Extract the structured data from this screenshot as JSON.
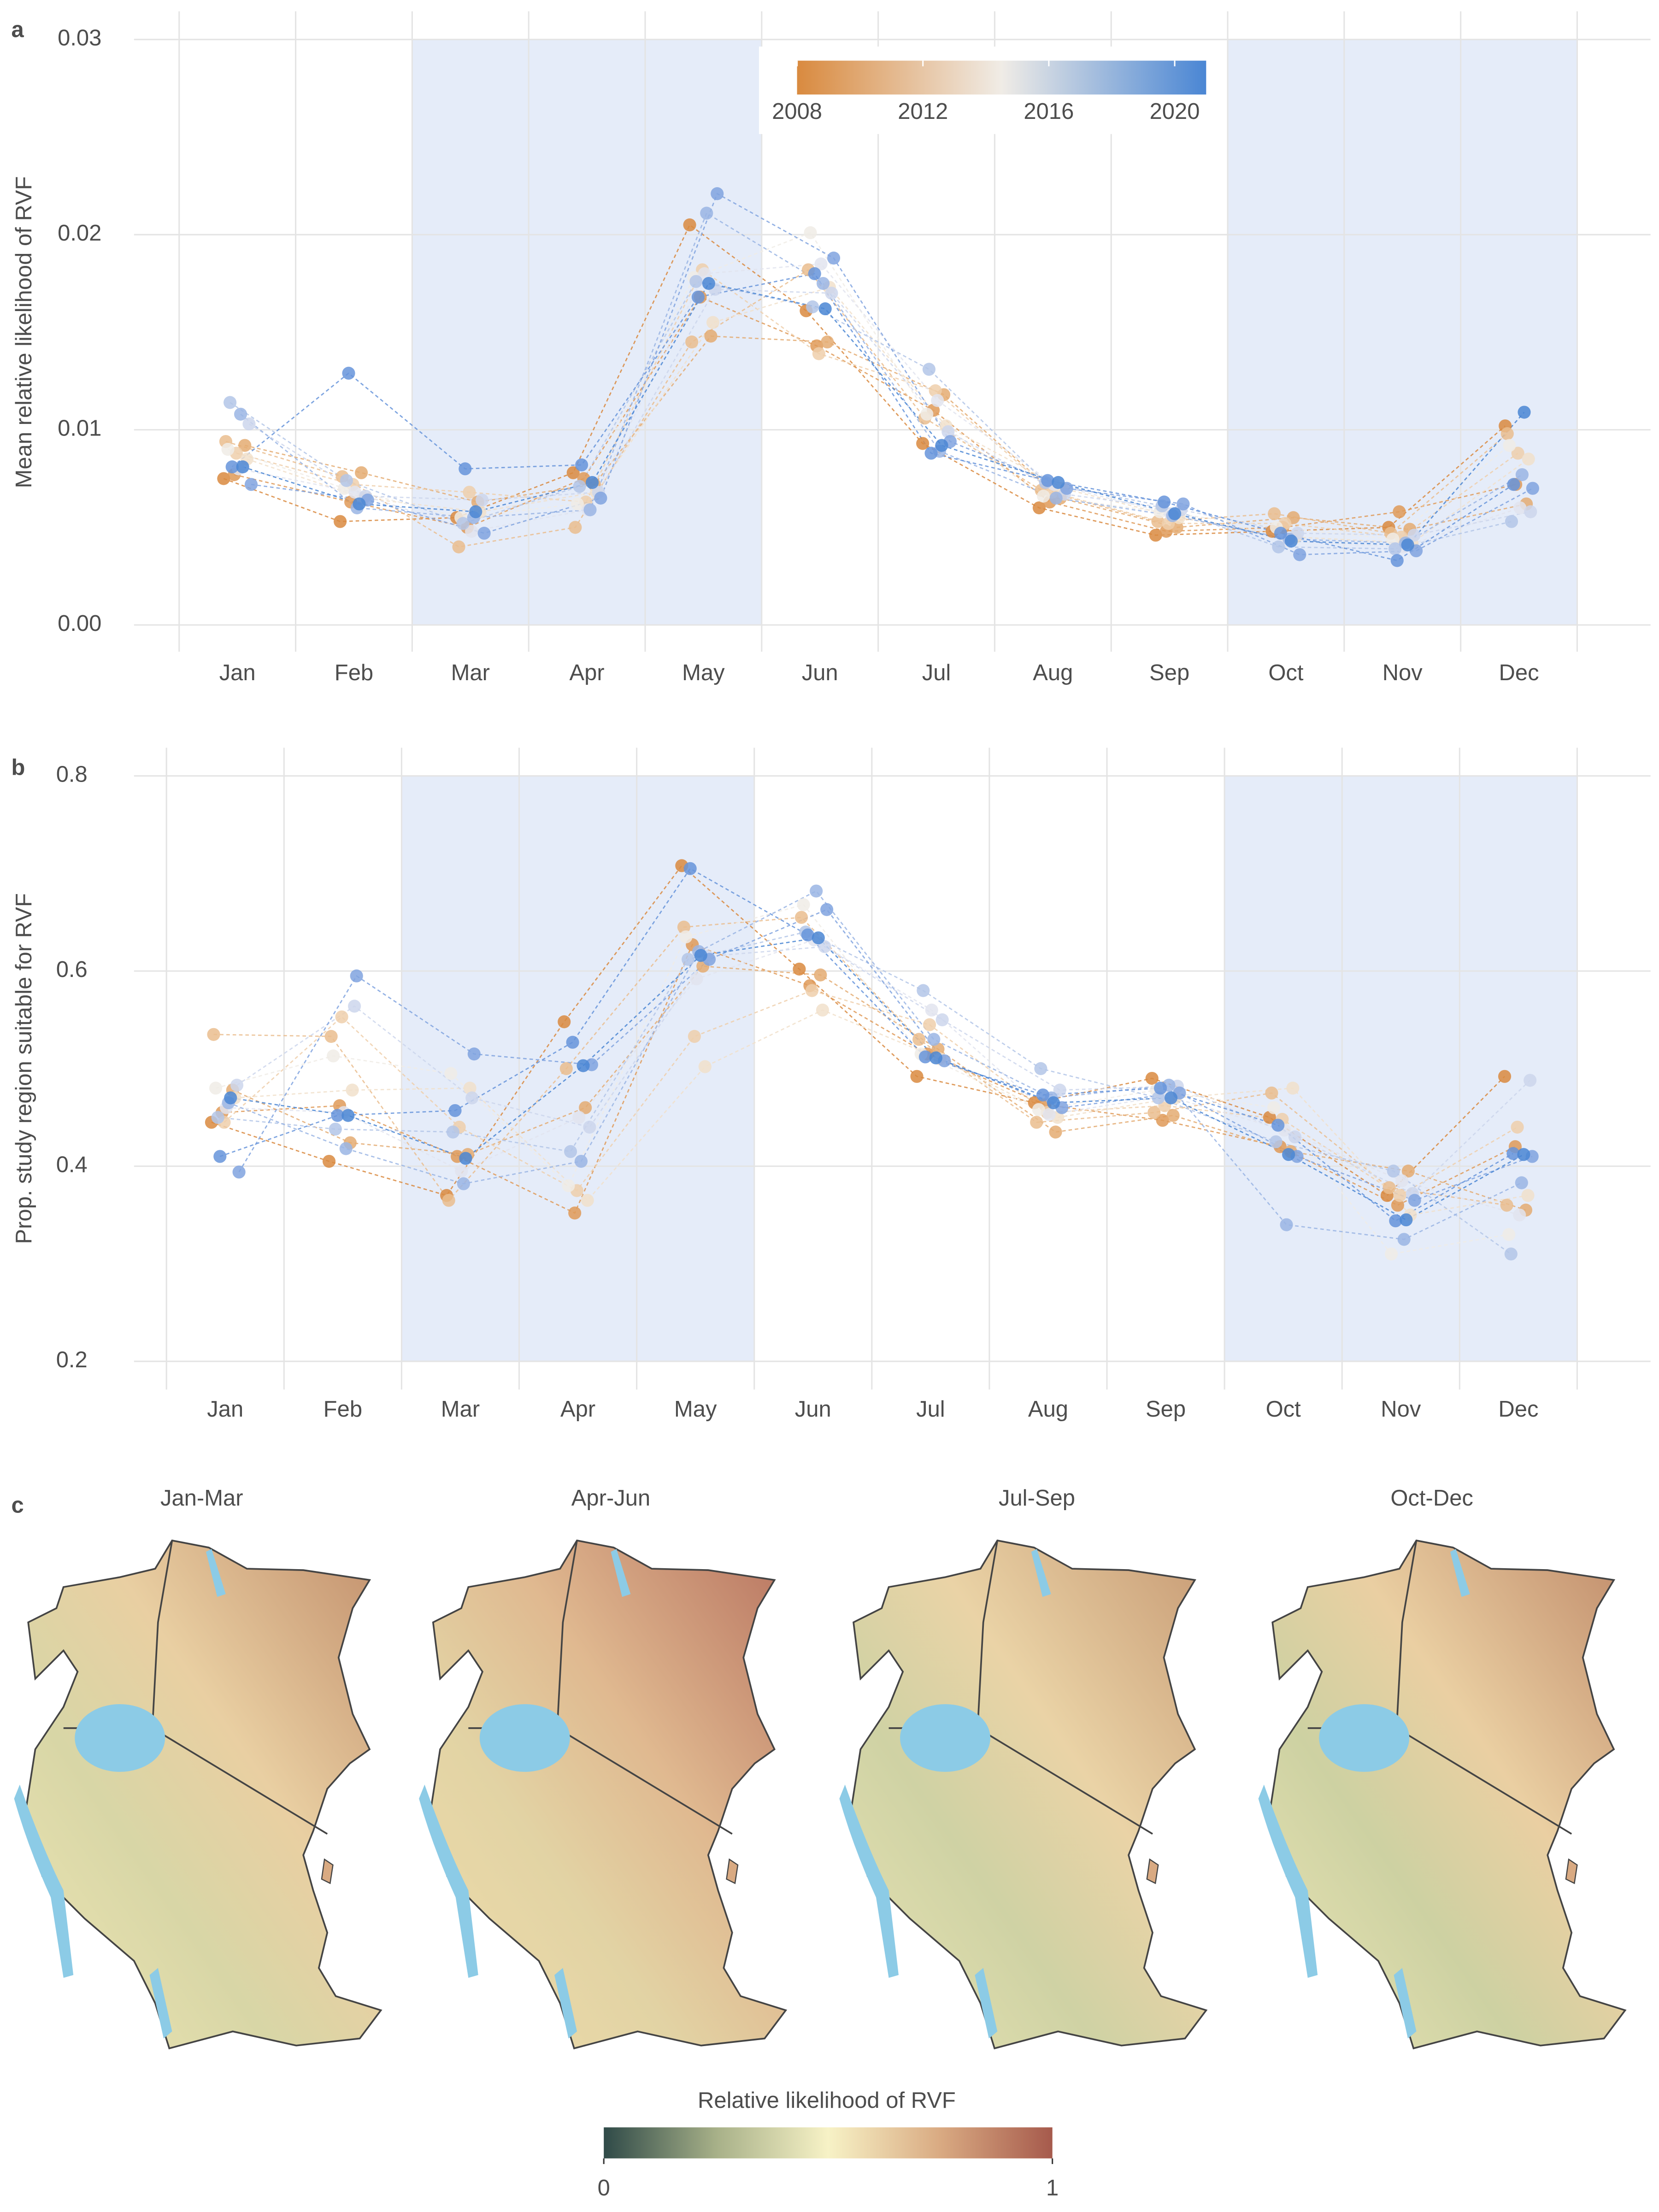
{
  "chart_data": [
    {
      "type": "line",
      "label": "a",
      "ylabel": "Mean relative likelihood of RVF",
      "categories": [
        "Jan",
        "Feb",
        "Mar",
        "Apr",
        "May",
        "Jun",
        "Jul",
        "Aug",
        "Sep",
        "Oct",
        "Nov",
        "Dec"
      ],
      "ylim": [
        0,
        0.03
      ],
      "yticks": [
        {
          "value": 0,
          "label": "0.00"
        },
        {
          "value": 0.01,
          "label": "0.01"
        },
        {
          "value": 0.02,
          "label": "0.02"
        },
        {
          "value": 0.03,
          "label": "0.03"
        }
      ],
      "grid": true,
      "shaded": [
        [
          "Mar",
          "May"
        ],
        [
          "Oct",
          "Dec"
        ]
      ],
      "colorbar": {
        "lim": [
          2008,
          2021
        ],
        "ticks": [
          2008,
          2012,
          2016,
          2020
        ],
        "colors": [
          "#d98a3f",
          "#f0ece6",
          "#4a86d4"
        ]
      },
      "series": [
        {
          "color": "#d98a3f",
          "values": [
            0.0075,
            0.0053,
            0.0055,
            0.0078,
            0.0205,
            0.0161,
            0.0093,
            0.006,
            0.0046,
            0.0048,
            0.005,
            0.0102
          ]
        },
        {
          "color": "#df9a58",
          "values": [
            0.0077,
            0.0063,
            0.005,
            0.0075,
            0.0168,
            0.0143,
            0.011,
            0.0063,
            0.0048,
            0.005,
            0.0058,
            0.0072
          ]
        },
        {
          "color": "#e4ab72",
          "values": [
            0.0092,
            0.0078,
            0.0063,
            0.0072,
            0.0148,
            0.0145,
            0.0118,
            0.0065,
            0.005,
            0.0055,
            0.0049,
            0.0062
          ]
        },
        {
          "color": "#eabd8e",
          "values": [
            0.0094,
            0.0076,
            0.004,
            0.005,
            0.0145,
            0.0182,
            0.0106,
            0.0069,
            0.0053,
            0.0057,
            0.0047,
            0.0098
          ]
        },
        {
          "color": "#eecfac",
          "values": [
            0.0088,
            0.0072,
            0.0068,
            0.0063,
            0.0182,
            0.0139,
            0.012,
            0.0068,
            0.0052,
            0.0052,
            0.0045,
            0.0088
          ]
        },
        {
          "color": "#f1e0cb",
          "values": [
            0.0085,
            0.0065,
            0.0058,
            0.0068,
            0.0155,
            0.0173,
            0.0102,
            0.007,
            0.0055,
            0.0045,
            0.0042,
            0.0085
          ]
        },
        {
          "color": "#f0ece6",
          "values": [
            0.009,
            0.007,
            0.0055,
            0.0062,
            0.0178,
            0.0201,
            0.0108,
            0.0066,
            0.0058,
            0.005,
            0.0044,
            0.0092
          ]
        },
        {
          "color": "#e2e4ee",
          "values": [
            0.008,
            0.0068,
            0.0048,
            0.0059,
            0.018,
            0.0185,
            0.0115,
            0.0072,
            0.0057,
            0.0043,
            0.004,
            0.006
          ]
        },
        {
          "color": "#ccd6ec",
          "values": [
            0.0103,
            0.0066,
            0.0064,
            0.0068,
            0.0172,
            0.017,
            0.0099,
            0.0067,
            0.0059,
            0.0047,
            0.0046,
            0.0058
          ]
        },
        {
          "color": "#b3c6e8",
          "values": [
            0.0114,
            0.0074,
            0.0052,
            0.0071,
            0.0176,
            0.0163,
            0.0131,
            0.0073,
            0.0061,
            0.004,
            0.0039,
            0.0053
          ]
        },
        {
          "color": "#9ab5e4",
          "values": [
            0.0108,
            0.006,
            0.0055,
            0.0059,
            0.0211,
            0.0175,
            0.0089,
            0.0065,
            0.0056,
            0.0044,
            0.0042,
            0.0077
          ]
        },
        {
          "color": "#80a3df",
          "values": [
            0.0072,
            0.0064,
            0.0047,
            0.0065,
            0.0221,
            0.0188,
            0.0094,
            0.007,
            0.0062,
            0.0036,
            0.0038,
            0.007
          ]
        },
        {
          "color": "#6694da",
          "values": [
            0.0081,
            0.0129,
            0.008,
            0.0082,
            0.0168,
            0.018,
            0.0088,
            0.0074,
            0.0063,
            0.0047,
            0.0033,
            0.0072
          ]
        },
        {
          "color": "#4a86d4",
          "values": [
            0.0081,
            0.0062,
            0.0058,
            0.0073,
            0.0175,
            0.0162,
            0.0092,
            0.0073,
            0.0057,
            0.0043,
            0.0041,
            0.0109
          ]
        }
      ]
    },
    {
      "type": "line",
      "label": "b",
      "ylabel": "Prop. study region suitable for RVF",
      "categories": [
        "Jan",
        "Feb",
        "Mar",
        "Apr",
        "May",
        "Jun",
        "Jul",
        "Aug",
        "Sep",
        "Oct",
        "Nov",
        "Dec"
      ],
      "ylim": [
        0.2,
        0.8
      ],
      "yticks": [
        0.2,
        0.4,
        0.6,
        0.8
      ],
      "grid": true,
      "shaded": [
        [
          "Mar",
          "May"
        ],
        [
          "Oct",
          "Dec"
        ]
      ],
      "series": [
        {
          "color": "#d98a3f",
          "values": [
            0.445,
            0.405,
            0.37,
            0.548,
            0.708,
            0.602,
            0.492,
            0.465,
            0.49,
            0.45,
            0.37,
            0.492
          ]
        },
        {
          "color": "#df9a58",
          "values": [
            0.455,
            0.462,
            0.41,
            0.352,
            0.627,
            0.585,
            0.515,
            0.463,
            0.447,
            0.42,
            0.36,
            0.42
          ]
        },
        {
          "color": "#e4ab72",
          "values": [
            0.478,
            0.424,
            0.412,
            0.46,
            0.605,
            0.596,
            0.52,
            0.435,
            0.452,
            0.415,
            0.395,
            0.355
          ]
        },
        {
          "color": "#eabd8e",
          "values": [
            0.535,
            0.533,
            0.365,
            0.5,
            0.645,
            0.655,
            0.53,
            0.445,
            0.455,
            0.475,
            0.378,
            0.36
          ]
        },
        {
          "color": "#eecfac",
          "values": [
            0.445,
            0.553,
            0.44,
            0.375,
            0.533,
            0.58,
            0.545,
            0.455,
            0.462,
            0.448,
            0.37,
            0.44
          ]
        },
        {
          "color": "#f1e0cb",
          "values": [
            0.47,
            0.478,
            0.48,
            0.365,
            0.502,
            0.56,
            0.51,
            0.45,
            0.47,
            0.48,
            0.35,
            0.37
          ]
        },
        {
          "color": "#f0ece6",
          "values": [
            0.48,
            0.513,
            0.495,
            0.38,
            0.635,
            0.668,
            0.515,
            0.458,
            0.478,
            0.46,
            0.31,
            0.33
          ]
        },
        {
          "color": "#e2e4ee",
          "values": [
            0.46,
            0.455,
            0.395,
            0.45,
            0.592,
            0.632,
            0.56,
            0.453,
            0.472,
            0.437,
            0.385,
            0.35
          ]
        },
        {
          "color": "#ccd6ec",
          "values": [
            0.483,
            0.564,
            0.47,
            0.44,
            0.615,
            0.625,
            0.55,
            0.478,
            0.482,
            0.43,
            0.372,
            0.488
          ]
        },
        {
          "color": "#b3c6e8",
          "values": [
            0.45,
            0.438,
            0.435,
            0.415,
            0.612,
            0.64,
            0.58,
            0.5,
            0.47,
            0.425,
            0.395,
            0.31
          ]
        },
        {
          "color": "#9ab5e4",
          "values": [
            0.465,
            0.418,
            0.382,
            0.405,
            0.62,
            0.682,
            0.53,
            0.47,
            0.483,
            0.34,
            0.325,
            0.383
          ]
        },
        {
          "color": "#80a3df",
          "values": [
            0.394,
            0.595,
            0.515,
            0.504,
            0.612,
            0.663,
            0.508,
            0.46,
            0.475,
            0.41,
            0.365,
            0.41
          ]
        },
        {
          "color": "#6694da",
          "values": [
            0.41,
            0.452,
            0.457,
            0.527,
            0.705,
            0.637,
            0.512,
            0.473,
            0.48,
            0.442,
            0.344,
            0.413
          ]
        },
        {
          "color": "#4a86d4",
          "values": [
            0.47,
            0.452,
            0.408,
            0.503,
            0.616,
            0.634,
            0.511,
            0.465,
            0.47,
            0.412,
            0.345,
            0.412
          ]
        }
      ]
    },
    {
      "type": "map",
      "label": "c",
      "panels": [
        "Jan-Mar",
        "Apr-Jun",
        "Jul-Sep",
        "Oct-Dec"
      ],
      "colorbar": {
        "title": "Relative likelihood of RVF",
        "lim": [
          0,
          1
        ],
        "ticks": [
          0,
          1
        ],
        "colors": [
          "#2f4a48",
          "#a7b088",
          "#f7f2c6",
          "#d9aa82",
          "#a65a4c"
        ]
      }
    }
  ]
}
